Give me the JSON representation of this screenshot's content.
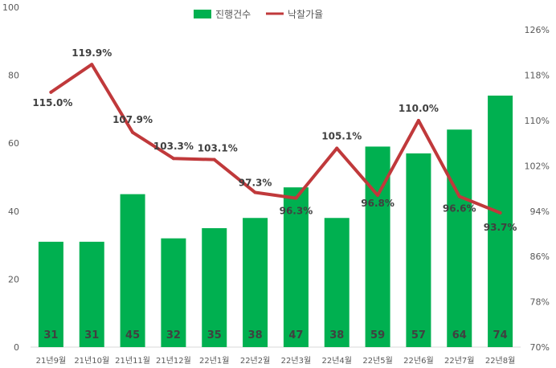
{
  "chart_data": {
    "type": "bar+line",
    "categories": [
      "21년9월",
      "21년10월",
      "21년11월",
      "21년12월",
      "22년1월",
      "22년2월",
      "22년3월",
      "22년4월",
      "22년5월",
      "22년6월",
      "22년7월",
      "22년8월"
    ],
    "series": [
      {
        "name": "진행건수",
        "type": "bar",
        "axis": "left",
        "values": [
          31,
          31,
          45,
          32,
          35,
          38,
          47,
          38,
          59,
          57,
          64,
          74
        ],
        "labels": [
          "31",
          "31",
          "45",
          "32",
          "35",
          "38",
          "47",
          "38",
          "59",
          "57",
          "64",
          "74"
        ],
        "color": "#00b050"
      },
      {
        "name": "낙찰가율",
        "type": "line",
        "axis": "right",
        "values": [
          115.0,
          119.9,
          107.9,
          103.3,
          103.1,
          97.3,
          96.3,
          105.1,
          96.8,
          110.0,
          96.6,
          93.7
        ],
        "labels": [
          "115.0%",
          "119.9%",
          "107.9%",
          "103.3%",
          "103.1%",
          "97.3%",
          "96.3%",
          "105.1%",
          "96.8%",
          "110.0%",
          "96.6%",
          "93.7%"
        ],
        "color": "#c0393b"
      }
    ],
    "y_left": {
      "min": 0,
      "max": 100,
      "ticks": [
        "0",
        "20",
        "40",
        "60",
        "80",
        "100"
      ]
    },
    "y_right": {
      "min": 70,
      "max": 130,
      "ticks": [
        "70%",
        "78%",
        "86%",
        "94%",
        "102%",
        "110%",
        "118%",
        "126%"
      ],
      "tick_values": [
        70,
        78,
        86,
        94,
        102,
        110,
        118,
        126
      ]
    },
    "legend_position": "top",
    "grid": false
  }
}
